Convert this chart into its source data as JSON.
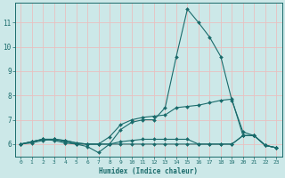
{
  "xlabel": "Humidex (Indice chaleur)",
  "bg_color": "#cce8e8",
  "line_color": "#1a6b6b",
  "grid_color": "#e8c0c0",
  "xlim": [
    -0.5,
    23.5
  ],
  "ylim": [
    5.5,
    11.8
  ],
  "x_ticks": [
    0,
    1,
    2,
    3,
    4,
    5,
    6,
    7,
    8,
    9,
    10,
    11,
    12,
    13,
    14,
    15,
    16,
    17,
    18,
    19,
    20,
    21,
    22,
    23
  ],
  "y_ticks": [
    6,
    7,
    8,
    9,
    10,
    11
  ],
  "series": [
    {
      "x": [
        0,
        1,
        2,
        3,
        4,
        5,
        6,
        7,
        8,
        9,
        10,
        11,
        12,
        13,
        14,
        15,
        16,
        17,
        18,
        19,
        20,
        21,
        22,
        23
      ],
      "y": [
        6.0,
        6.1,
        6.2,
        6.2,
        6.1,
        6.0,
        5.9,
        5.65,
        6.0,
        6.6,
        6.9,
        7.0,
        7.0,
        7.5,
        9.6,
        11.55,
        11.0,
        10.4,
        9.6,
        7.8,
        6.5,
        6.35,
        5.95,
        5.85
      ]
    },
    {
      "x": [
        0,
        1,
        2,
        3,
        4,
        5,
        6,
        7,
        8,
        9,
        10,
        11,
        12,
        13,
        14,
        15,
        16,
        17,
        18,
        19,
        20,
        21,
        22,
        23
      ],
      "y": [
        6.0,
        6.1,
        6.2,
        6.2,
        6.15,
        6.05,
        6.0,
        6.0,
        6.3,
        6.8,
        7.0,
        7.1,
        7.15,
        7.2,
        7.5,
        7.55,
        7.6,
        7.7,
        7.8,
        7.85,
        6.35,
        6.35,
        5.95,
        5.85
      ]
    },
    {
      "x": [
        0,
        1,
        2,
        3,
        4,
        5,
        6,
        7,
        8,
        9,
        10,
        11,
        12,
        13,
        14,
        15,
        16,
        17,
        18,
        19,
        20,
        21,
        22,
        23
      ],
      "y": [
        6.0,
        6.1,
        6.2,
        6.15,
        6.05,
        6.0,
        6.0,
        6.0,
        6.0,
        6.0,
        6.0,
        6.0,
        6.0,
        6.0,
        6.0,
        6.0,
        6.0,
        6.0,
        6.0,
        6.0,
        6.35,
        6.35,
        5.95,
        5.85
      ]
    },
    {
      "x": [
        0,
        1,
        2,
        3,
        4,
        5,
        6,
        7,
        8,
        9,
        10,
        11,
        12,
        13,
        14,
        15,
        16,
        17,
        18,
        19,
        20,
        21,
        22,
        23
      ],
      "y": [
        6.0,
        6.05,
        6.15,
        6.2,
        6.15,
        6.05,
        6.0,
        6.0,
        6.0,
        6.1,
        6.15,
        6.2,
        6.2,
        6.2,
        6.2,
        6.2,
        6.0,
        6.0,
        6.0,
        6.0,
        6.35,
        6.35,
        5.95,
        5.85
      ]
    }
  ]
}
